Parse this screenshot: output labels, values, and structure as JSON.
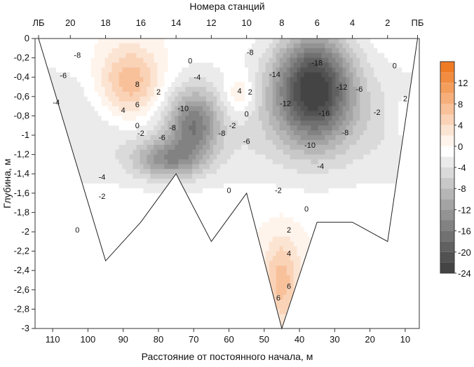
{
  "chart_data": {
    "type": "contour",
    "top_axis_title": "Номера станций",
    "xlabel": "Расстояние от постоянного начала, м",
    "ylabel": "Глубина, м",
    "x_reversed": true,
    "xlim": [
      115,
      6
    ],
    "ylim": [
      -3,
      0
    ],
    "x_ticks": [
      110,
      100,
      90,
      80,
      70,
      60,
      50,
      40,
      30,
      20,
      10
    ],
    "y_ticks": [
      0,
      -0.2,
      -0.4,
      -0.6,
      -0.8,
      -1,
      -1.2,
      -1.4,
      -1.6,
      -1.8,
      -2,
      -2.2,
      -2.4,
      -2.6,
      -2.8,
      -3
    ],
    "y_tick_labels": [
      "0",
      "-0,2",
      "-0,4",
      "-0,6",
      "-0,8",
      "-1",
      "-1,2",
      "-1,4",
      "-1,6",
      "-1,8",
      "-2",
      "-2,2",
      "-2,4",
      "-2,6",
      "-2,8",
      "-3"
    ],
    "station_ticks": [
      {
        "label": "ЛБ",
        "x": 114
      },
      {
        "label": "20",
        "x": 105
      },
      {
        "label": "18",
        "x": 95
      },
      {
        "label": "16",
        "x": 85
      },
      {
        "label": "14",
        "x": 75
      },
      {
        "label": "12",
        "x": 65
      },
      {
        "label": "10",
        "x": 55
      },
      {
        "label": "8",
        "x": 45
      },
      {
        "label": "6",
        "x": 35
      },
      {
        "label": "4",
        "x": 25
      },
      {
        "label": "2",
        "x": 15
      },
      {
        "label": "ПБ",
        "x": 6.5
      }
    ],
    "bottom_profile": [
      [
        114,
        0
      ],
      [
        95,
        -2.3
      ],
      [
        85,
        -1.9
      ],
      [
        75,
        -1.4
      ],
      [
        65,
        -2.1
      ],
      [
        55,
        -1.6
      ],
      [
        45,
        -3.0
      ],
      [
        35,
        -1.9
      ],
      [
        25,
        -1.9
      ],
      [
        15,
        -2.1
      ],
      [
        6.5,
        0
      ]
    ],
    "colorbar": {
      "levels": [
        -24,
        -20,
        -16,
        -12,
        -8,
        -4,
        0,
        4,
        8,
        12
      ],
      "tick_labels": [
        "12",
        "8",
        "4",
        "0",
        "-4",
        "-8",
        "-12",
        "-16",
        "-20",
        "-24"
      ],
      "bins": [
        {
          "from": 14,
          "to": 16,
          "color": "#f07b25"
        },
        {
          "from": 12,
          "to": 14,
          "color": "#f28c41"
        },
        {
          "from": 10,
          "to": 12,
          "color": "#f49e5e"
        },
        {
          "from": 8,
          "to": 10,
          "color": "#f6af7b"
        },
        {
          "from": 6,
          "to": 8,
          "color": "#f8c19a"
        },
        {
          "from": 4,
          "to": 6,
          "color": "#fad3b7"
        },
        {
          "from": 2,
          "to": 4,
          "color": "#fce4d3"
        },
        {
          "from": 0,
          "to": 2,
          "color": "#fef4ec"
        },
        {
          "from": -2,
          "to": 0,
          "color": "#ffffff"
        },
        {
          "from": -4,
          "to": -2,
          "color": "#ebebeb"
        },
        {
          "from": -6,
          "to": -4,
          "color": "#dadada"
        },
        {
          "from": -8,
          "to": -6,
          "color": "#c8c8c8"
        },
        {
          "from": -10,
          "to": -8,
          "color": "#b6b6b6"
        },
        {
          "from": -12,
          "to": -10,
          "color": "#a4a4a4"
        },
        {
          "from": -14,
          "to": -12,
          "color": "#939393"
        },
        {
          "from": -16,
          "to": -14,
          "color": "#828282"
        },
        {
          "from": -18,
          "to": -16,
          "color": "#717171"
        },
        {
          "from": -20,
          "to": -18,
          "color": "#616161"
        },
        {
          "from": -22,
          "to": -20,
          "color": "#525252"
        },
        {
          "from": -24,
          "to": -22,
          "color": "#444444"
        }
      ]
    },
    "extrema": [
      {
        "x": 88,
        "y": -0.47,
        "value": 10
      },
      {
        "x": 57,
        "y": -0.58,
        "value": 5
      },
      {
        "x": 36,
        "y": -0.5,
        "value": -22
      },
      {
        "x": 70,
        "y": -0.9,
        "value": -12
      },
      {
        "x": 78,
        "y": -1.25,
        "value": -10
      },
      {
        "x": 10,
        "y": -0.85,
        "value": 3
      },
      {
        "x": 45,
        "y": -2.5,
        "value": 7
      }
    ],
    "contour_labels": [
      {
        "text": "-8",
        "x": 103,
        "y": -0.17
      },
      {
        "text": "-6",
        "x": 107,
        "y": -0.38
      },
      {
        "text": "-4",
        "x": 109,
        "y": -0.66
      },
      {
        "text": "-2",
        "x": 85,
        "y": -0.98
      },
      {
        "text": "-4",
        "x": 96,
        "y": -1.43
      },
      {
        "text": "-2",
        "x": 96,
        "y": -1.63
      },
      {
        "text": "0",
        "x": 103,
        "y": -1.98
      },
      {
        "text": "8",
        "x": 86,
        "y": -0.47
      },
      {
        "text": "6",
        "x": 86,
        "y": -0.68
      },
      {
        "text": "4",
        "x": 90,
        "y": -0.74
      },
      {
        "text": "2",
        "x": 80,
        "y": -0.55
      },
      {
        "text": "0",
        "x": 86,
        "y": -0.9
      },
      {
        "text": "0",
        "x": 71,
        "y": -0.23
      },
      {
        "text": "-4",
        "x": 69,
        "y": -0.4
      },
      {
        "text": "-10",
        "x": 73,
        "y": -0.72
      },
      {
        "text": "-8",
        "x": 76,
        "y": -0.92
      },
      {
        "text": "-6",
        "x": 79,
        "y": -1.02
      },
      {
        "text": "-8",
        "x": 62,
        "y": -0.98
      },
      {
        "text": "-6",
        "x": 55,
        "y": -1.06
      },
      {
        "text": "-2",
        "x": 59,
        "y": -0.9
      },
      {
        "text": "4",
        "x": 57,
        "y": -0.54
      },
      {
        "text": "2",
        "x": 54,
        "y": -0.55
      },
      {
        "text": "0",
        "x": 55,
        "y": -0.78
      },
      {
        "text": "-8",
        "x": 54,
        "y": -0.14
      },
      {
        "text": "-14",
        "x": 47,
        "y": -0.37
      },
      {
        "text": "-12",
        "x": 44,
        "y": -0.67
      },
      {
        "text": "-18",
        "x": 35,
        "y": -0.25
      },
      {
        "text": "-16",
        "x": 33,
        "y": -0.77
      },
      {
        "text": "-12",
        "x": 28,
        "y": -0.5
      },
      {
        "text": "-10",
        "x": 37,
        "y": -1.1
      },
      {
        "text": "-8",
        "x": 27,
        "y": -0.97
      },
      {
        "text": "-6",
        "x": 23,
        "y": -0.52
      },
      {
        "text": "-4",
        "x": 34,
        "y": -1.32
      },
      {
        "text": "-2",
        "x": 46,
        "y": -1.57
      },
      {
        "text": "0",
        "x": 60,
        "y": -1.57
      },
      {
        "text": "0",
        "x": 38,
        "y": -1.76
      },
      {
        "text": "-2",
        "x": 18,
        "y": -0.76
      },
      {
        "text": "0",
        "x": 13,
        "y": -0.28
      },
      {
        "text": "2",
        "x": 10,
        "y": -0.62
      },
      {
        "text": "2",
        "x": 43,
        "y": -1.98
      },
      {
        "text": "4",
        "x": 43,
        "y": -2.22
      },
      {
        "text": "6",
        "x": 43,
        "y": -2.56
      },
      {
        "text": "6",
        "x": 46,
        "y": -2.68
      }
    ]
  }
}
